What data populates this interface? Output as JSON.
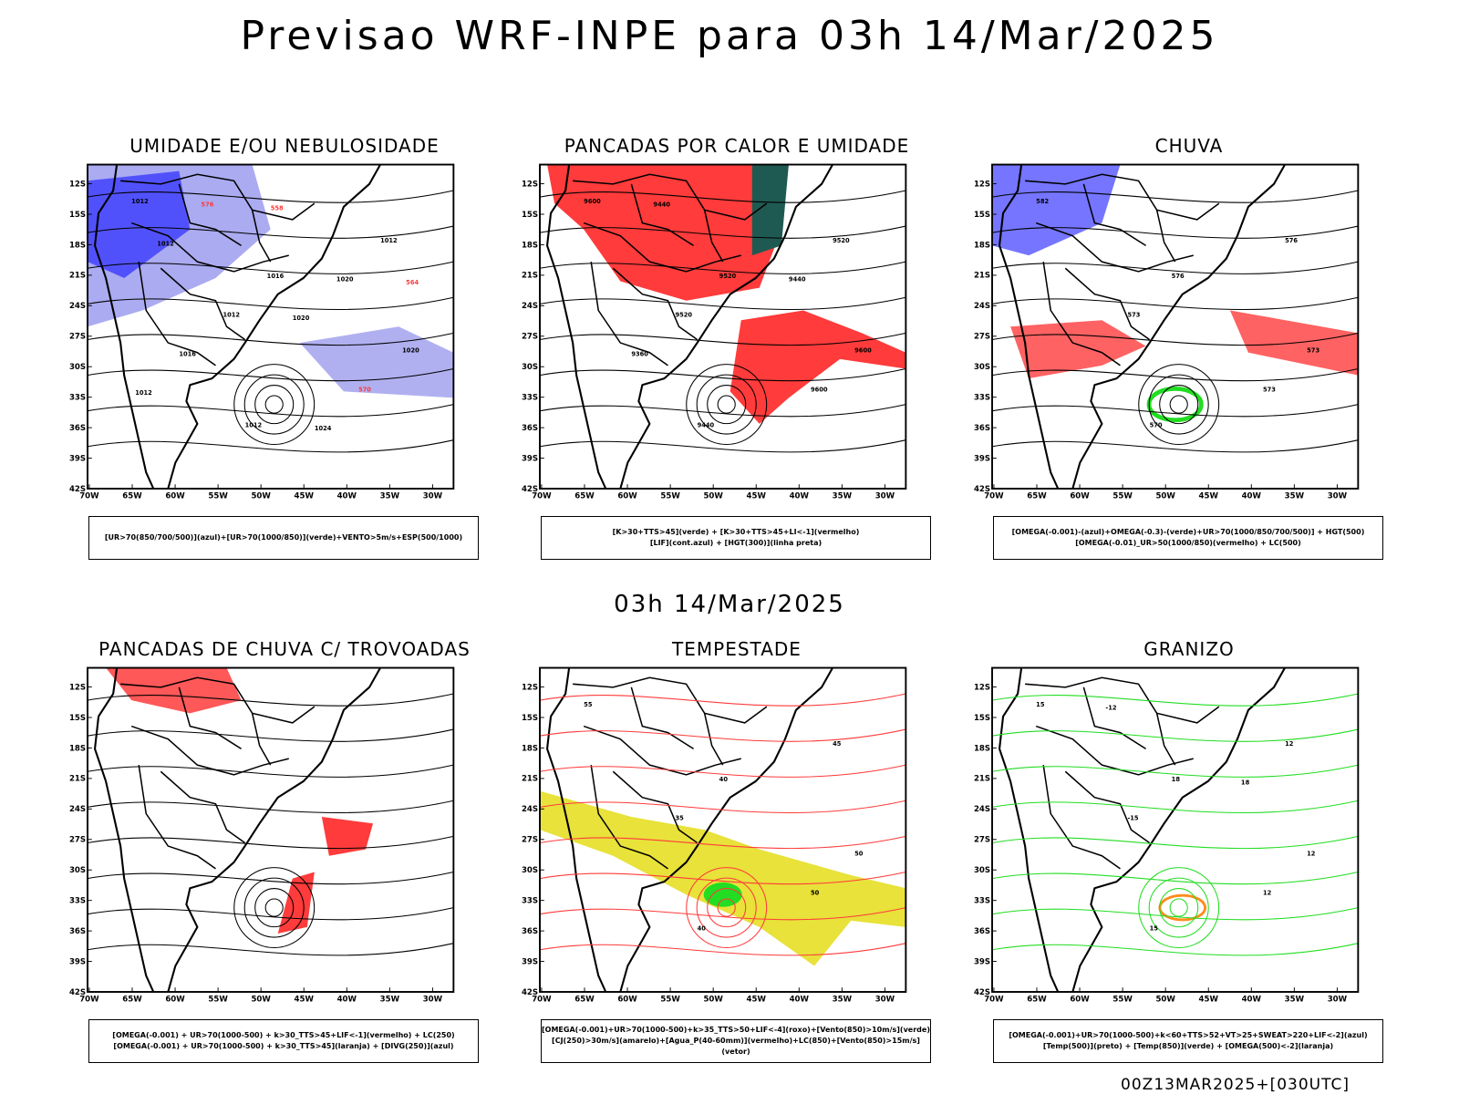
{
  "title": "Previsao WRF-INPE  para 03h 14/Mar/2025",
  "mid_title": "03h 14/Mar/2025",
  "footer": "00Z13MAR2025+[030UTC]",
  "lat_labels": [
    "12S",
    "15S",
    "18S",
    "21S",
    "24S",
    "27S",
    "30S",
    "33S",
    "36S",
    "39S",
    "42S"
  ],
  "lon_labels": [
    "70W",
    "65W",
    "60W",
    "55W",
    "50W",
    "45W",
    "40W",
    "35W",
    "30W"
  ],
  "colors": {
    "blue": "#3b3bff",
    "lightblue": "#9c9cee",
    "green": "#22dd22",
    "red": "#ff3b3b",
    "darkteal": "#1f5a52",
    "yellow": "#e8e23a",
    "orange": "#ff8c1a"
  },
  "panels": [
    {
      "title": "UMIDADE E/OU NEBULOSIDADE",
      "legend": [
        "[UR>70(850/700/500)](azul)+[UR>70(1000/850)](verde)+VENTO>5m/s+ESP(500/1000)"
      ],
      "contour_labels": [
        "1012",
        "1016",
        "1020",
        "1012",
        "1012",
        "1012",
        "570",
        "576",
        "1020",
        "1016",
        "1024",
        "1012",
        "1020",
        "1012",
        "558",
        "564"
      ]
    },
    {
      "title": "PANCADAS POR CALOR E UMIDADE",
      "legend": [
        "[K>30+TTS>45](verde) + [K>30+TTS>45+LI<-1](vermelho)",
        "[LIF](cont.azul) + [HGT(300)](linha preta)"
      ],
      "contour_labels": [
        "9600",
        "9520",
        "9600",
        "9440",
        "9520",
        "9520",
        "9600",
        "9440",
        "9440",
        "9360"
      ]
    },
    {
      "title": "CHUVA",
      "legend": [
        "[OMEGA(-0.001)-(azul)+OMEGA(-0.3)-(verde)+UR>70(1000/850/700/500)] + HGT(500)",
        "[OMEGA(-0.01)_UR>50(1000/850)(vermelho) + LC(500)"
      ],
      "contour_labels": [
        "582",
        "576",
        "573",
        "570",
        "576",
        "573",
        "573"
      ]
    },
    {
      "title": "PANCADAS DE CHUVA C/ TROVOADAS",
      "legend": [
        "[OMEGA(-0.001) + UR>70(1000-500) + k>30_TTS>45+LIF<-1](vermelho) + LC(250)",
        "[OMEGA(-0.001) + UR>70(1000-500) + k>30_TTS>45](laranja) + [DIVG(250)](azul)"
      ],
      "contour_labels": []
    },
    {
      "title": "TEMPESTADE",
      "legend": [
        "[OMEGA(-0.001)+UR>70(1000-500)+k>35_TTS>50+LIF<-4](roxo)+[Vento(850)>10m/s](verde)",
        "[CJ(250)>30m/s](amarelo)+[Agua_P(40-60mm)](vermelho)+LC(850)+[Vento(850)>15m/s](vetor)"
      ],
      "contour_labels": [
        "55",
        "40",
        "50",
        "40",
        "45",
        "35",
        "50"
      ]
    },
    {
      "title": "GRANIZO",
      "legend": [
        "[OMEGA(-0.001)+UR>70(1000-500)+k<60+TTS>52+VT>25+SWEAT>220+LIF<-2](azul)",
        "[Temp(500)](preto) + [Temp(850)](verde) + [OMEGA(500)<-2](laranja)"
      ],
      "contour_labels": [
        "15",
        "18",
        "12",
        "15",
        "12",
        "-15",
        "12",
        "-12",
        "18"
      ]
    }
  ]
}
